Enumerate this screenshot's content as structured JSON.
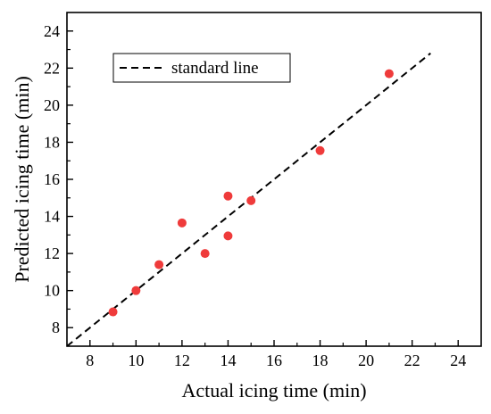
{
  "chart_data": {
    "type": "scatter",
    "title": "",
    "xlabel": "Actual icing time (min)",
    "ylabel": "Predicted icing time (min)",
    "xlim": [
      7,
      25
    ],
    "ylim": [
      7,
      25
    ],
    "xticks": [
      "8",
      "10",
      "12",
      "14",
      "16",
      "18",
      "20",
      "22",
      "24"
    ],
    "yticks": [
      "8",
      "10",
      "12",
      "14",
      "16",
      "18",
      "20",
      "22",
      "24"
    ],
    "grid": false,
    "legend_position": "top-left",
    "series": [
      {
        "type": "line",
        "name": "standard line",
        "style": "dashed",
        "color": "#000000",
        "x": [
          7,
          22.8
        ],
        "y": [
          7,
          22.8
        ]
      },
      {
        "type": "scatter",
        "color": "#ef3b3b",
        "x": [
          9,
          10,
          11,
          12,
          13,
          14,
          14,
          15,
          18,
          21
        ],
        "y": [
          8.85,
          10.0,
          11.4,
          13.65,
          12.0,
          15.1,
          12.95,
          14.85,
          17.55,
          21.7
        ]
      }
    ]
  }
}
